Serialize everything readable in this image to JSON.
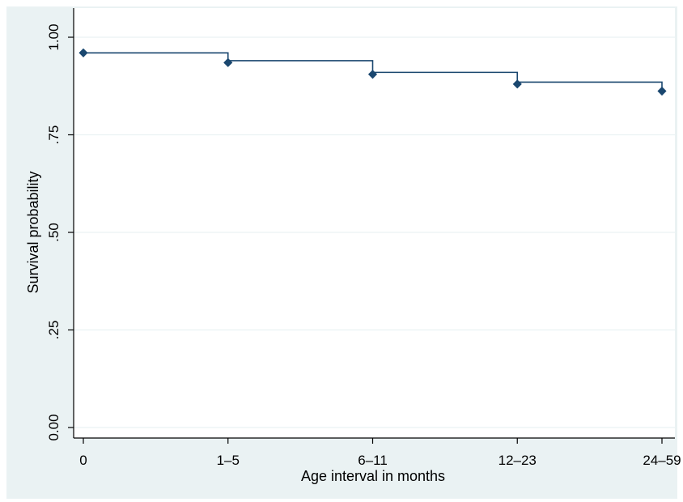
{
  "chart_data": {
    "type": "line",
    "step": true,
    "title": "",
    "xlabel": "Age interval in months",
    "ylabel": "Survival probability",
    "categories": [
      "0",
      "1–5",
      "6–11",
      "12–23",
      "24–59"
    ],
    "series": [
      {
        "values": [
          0.96,
          0.935,
          0.905,
          0.88,
          0.862
        ]
      }
    ],
    "ylim": [
      0,
      1
    ],
    "yticks": [
      0,
      0.25,
      0.5,
      0.75,
      1
    ],
    "ytick_labels": [
      "0.00",
      ".25",
      ".50",
      ".75",
      "1.00"
    ],
    "grid": "horizontal",
    "legend": "none",
    "colors": {
      "outer_background": "#eaf2f3",
      "plot_background": "#ffffff",
      "gridline": "#eaf2f3",
      "series": "#1a476f",
      "axis": "#000000"
    }
  }
}
